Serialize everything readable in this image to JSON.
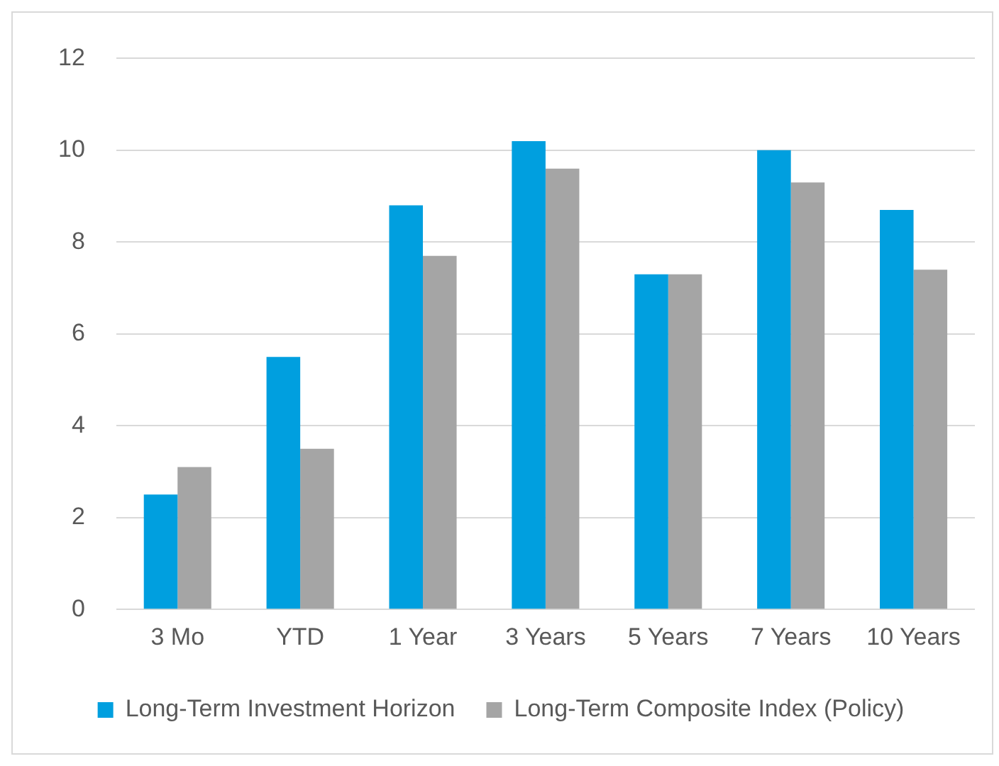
{
  "chart_data": {
    "type": "bar",
    "categories": [
      "3 Mo",
      "YTD",
      "1 Year",
      "3 Years",
      "5 Years",
      "7 Years",
      "10 Years"
    ],
    "series": [
      {
        "name": "Long-Term Investment Horizon",
        "color": "#009fdf",
        "values": [
          2.5,
          5.5,
          8.8,
          10.2,
          7.3,
          10.0,
          8.7
        ]
      },
      {
        "name": "Long-Term Composite Index (Policy)",
        "color": "#a5a5a5",
        "values": [
          3.1,
          3.5,
          7.7,
          9.6,
          7.3,
          9.3,
          7.4
        ]
      }
    ],
    "ylim": [
      0,
      12
    ],
    "yticks": [
      0,
      2,
      4,
      6,
      8,
      10,
      12
    ],
    "grid": "y",
    "legend": "bottom"
  }
}
